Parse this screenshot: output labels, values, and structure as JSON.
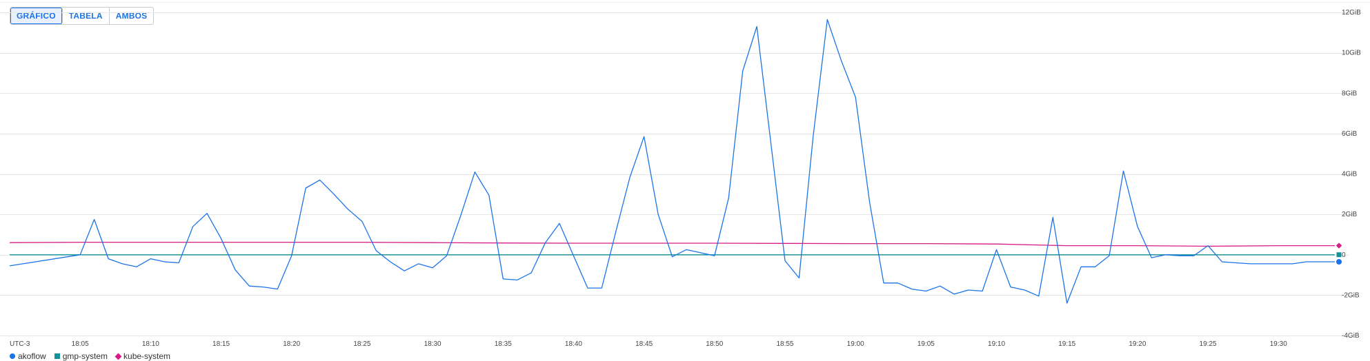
{
  "toggle": {
    "chart_label": "GRÁFICO",
    "table_label": "TABELA",
    "both_label": "AMBOS",
    "selected": "GRÁFICO"
  },
  "timezone_label": "UTC-3",
  "colors": {
    "akoflow": "#1a73e8",
    "gmp-system": "#12939a",
    "kube-system": "#d81b84",
    "grid": "#e6e6e6"
  },
  "chart_data": {
    "type": "line",
    "title": "",
    "xlabel": "",
    "ylabel": "",
    "ylim": [
      -4,
      12
    ],
    "y_unit": "GiB",
    "y_ticks": [
      "12GiB",
      "10GiB",
      "8GiB",
      "6GiB",
      "4GiB",
      "2GiB",
      "0",
      "-2GiB",
      "-4GiB"
    ],
    "x_ticks": [
      "18:05",
      "18:10",
      "18:15",
      "18:20",
      "18:25",
      "18:30",
      "18:35",
      "18:40",
      "18:45",
      "18:50",
      "18:55",
      "19:00",
      "19:05",
      "19:10",
      "19:15",
      "19:20",
      "19:25",
      "19:30"
    ],
    "grid": true,
    "legend_position": "bottom-left",
    "series": [
      {
        "name": "akoflow",
        "x": [
          "18:00",
          "18:05",
          "18:06",
          "18:07",
          "18:08",
          "18:09",
          "18:10",
          "18:11",
          "18:12",
          "18:13",
          "18:14",
          "18:15",
          "18:16",
          "18:17",
          "18:18",
          "18:19",
          "18:20",
          "18:21",
          "18:22",
          "18:23",
          "18:24",
          "18:25",
          "18:26",
          "18:27",
          "18:28",
          "18:29",
          "18:30",
          "18:31",
          "18:32",
          "18:33",
          "18:34",
          "18:35",
          "18:36",
          "18:37",
          "18:38",
          "18:39",
          "18:40",
          "18:41",
          "18:42",
          "18:43",
          "18:44",
          "18:45",
          "18:46",
          "18:47",
          "18:48",
          "18:49",
          "18:50",
          "18:51",
          "18:52",
          "18:53",
          "18:54",
          "18:55",
          "18:56",
          "18:57",
          "18:58",
          "18:59",
          "19:00",
          "19:01",
          "19:02",
          "19:03",
          "19:04",
          "19:05",
          "19:06",
          "19:07",
          "19:08",
          "19:09",
          "19:10",
          "19:11",
          "19:12",
          "19:13",
          "19:14",
          "19:15",
          "19:16",
          "19:17",
          "19:18",
          "19:19",
          "19:20",
          "19:21",
          "19:22",
          "19:23",
          "19:24",
          "19:25",
          "19:26",
          "19:27",
          "19:28",
          "19:29",
          "19:30",
          "19:31",
          "19:32",
          "19:33",
          "19:34"
        ],
        "values": [
          -0.55,
          0.0,
          1.75,
          -0.2,
          -0.45,
          -0.6,
          -0.2,
          -0.35,
          -0.4,
          1.4,
          2.05,
          0.8,
          -0.75,
          -1.55,
          -1.6,
          -1.7,
          -0.05,
          3.3,
          3.7,
          3.0,
          2.25,
          1.65,
          0.2,
          -0.35,
          -0.8,
          -0.45,
          -0.65,
          -0.05,
          1.95,
          4.1,
          2.95,
          -1.2,
          -1.25,
          -0.9,
          0.6,
          1.55,
          -0.05,
          -1.65,
          -1.65,
          1.15,
          3.85,
          5.85,
          2.0,
          -0.1,
          0.25,
          0.1,
          -0.05,
          2.8,
          9.1,
          11.3,
          5.5,
          -0.3,
          -1.15,
          5.9,
          11.65,
          9.6,
          7.8,
          2.6,
          -1.4,
          -1.4,
          -1.7,
          -1.8,
          -1.55,
          -1.95,
          -1.75,
          -1.8,
          0.25,
          -1.6,
          -1.75,
          -2.05,
          1.85,
          -2.4,
          -0.6,
          -0.6,
          -0.05,
          4.15,
          1.4,
          -0.15,
          0.0,
          -0.05,
          -0.05,
          0.45,
          -0.35,
          -0.4,
          -0.45,
          -0.45,
          -0.45,
          -0.45,
          -0.35,
          -0.35,
          -0.35
        ]
      },
      {
        "name": "gmp-system",
        "x": [
          "18:00",
          "19:34"
        ],
        "values": [
          0.0,
          0.0
        ]
      },
      {
        "name": "kube-system",
        "x": [
          "18:00",
          "18:05",
          "18:10",
          "18:15",
          "18:20",
          "18:25",
          "18:30",
          "18:35",
          "18:40",
          "18:45",
          "18:50",
          "18:55",
          "19:00",
          "19:05",
          "19:10",
          "19:15",
          "19:20",
          "19:25",
          "19:30",
          "19:34"
        ],
        "values": [
          0.6,
          0.62,
          0.62,
          0.62,
          0.62,
          0.62,
          0.6,
          0.58,
          0.57,
          0.57,
          0.57,
          0.56,
          0.55,
          0.55,
          0.53,
          0.45,
          0.45,
          0.42,
          0.45,
          0.45
        ]
      }
    ]
  }
}
